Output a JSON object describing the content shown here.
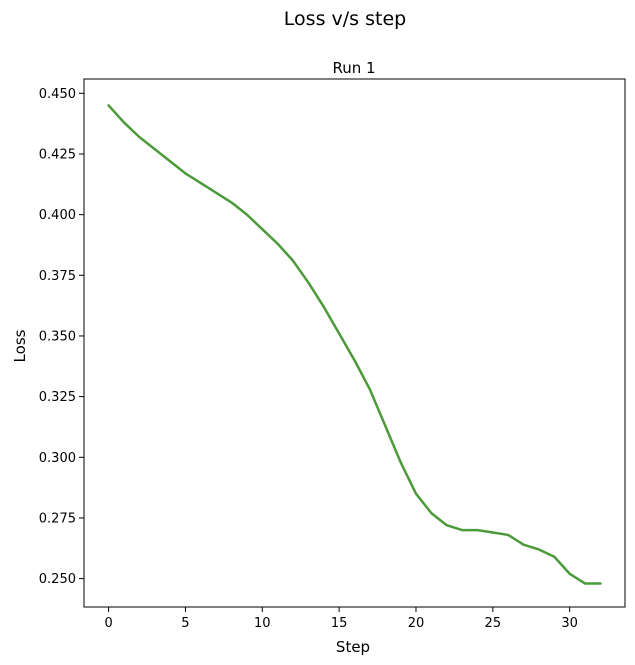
{
  "chart_data": {
    "type": "line",
    "suptitle": "Loss v/s step",
    "title": "Run 1",
    "xlabel": "Step",
    "ylabel": "Loss",
    "xlim": [
      -1.6,
      33.6
    ],
    "ylim": [
      0.2383,
      0.4559
    ],
    "xticks": [
      0,
      5,
      10,
      15,
      20,
      25,
      30
    ],
    "yticks": [
      0.25,
      0.275,
      0.3,
      0.325,
      0.35,
      0.375,
      0.4,
      0.425,
      0.45
    ],
    "grid": false,
    "line_color": "#4c9a3a",
    "series": [
      {
        "name": "",
        "x": [
          0,
          1,
          2,
          3,
          4,
          5,
          6,
          7,
          8,
          9,
          10,
          11,
          12,
          13,
          14,
          15,
          16,
          17,
          18,
          19,
          20,
          21,
          22,
          23,
          24,
          25,
          26,
          27,
          28,
          29,
          30,
          31,
          32
        ],
        "y": [
          0.445,
          0.438,
          0.432,
          0.427,
          0.422,
          0.417,
          0.413,
          0.409,
          0.405,
          0.4,
          0.394,
          0.388,
          0.381,
          0.372,
          0.362,
          0.351,
          0.34,
          0.328,
          0.313,
          0.298,
          0.285,
          0.277,
          0.272,
          0.27,
          0.27,
          0.269,
          0.268,
          0.264,
          0.262,
          0.259,
          0.252,
          0.248,
          0.248
        ]
      }
    ]
  }
}
